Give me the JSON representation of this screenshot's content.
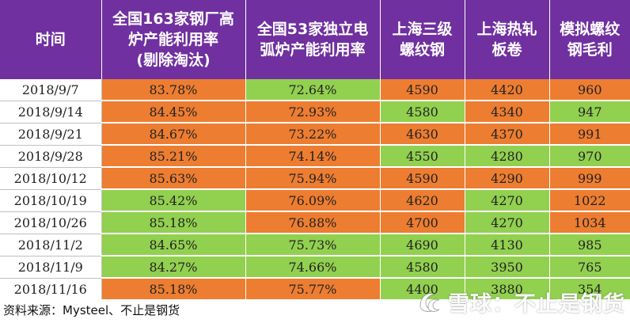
{
  "table": {
    "headers": [
      "时间",
      "全国163家钢厂高\n炉产能利用率\n(剔除淘汰)",
      "全国53家独立电\n弧炉产能利用率",
      "上海三级\n螺纹钢",
      "上海热轧\n板卷",
      "模拟螺纹\n钢毛利"
    ],
    "rows": [
      {
        "date": "2018/9/7",
        "bf": "83.78%",
        "eaf": "72.64%",
        "rebar": "4590",
        "hrc": "4420",
        "margin": "960"
      },
      {
        "date": "2018/9/14",
        "bf": "84.45%",
        "eaf": "72.93%",
        "rebar": "4580",
        "hrc": "4340",
        "margin": "947"
      },
      {
        "date": "2018/9/21",
        "bf": "84.67%",
        "eaf": "73.22%",
        "rebar": "4630",
        "hrc": "4370",
        "margin": "991"
      },
      {
        "date": "2018/9/28",
        "bf": "85.21%",
        "eaf": "74.14%",
        "rebar": "4550",
        "hrc": "4280",
        "margin": "970"
      },
      {
        "date": "2018/10/12",
        "bf": "85.63%",
        "eaf": "75.94%",
        "rebar": "4590",
        "hrc": "4290",
        "margin": "999"
      },
      {
        "date": "2018/10/19",
        "bf": "85.42%",
        "eaf": "76.09%",
        "rebar": "4620",
        "hrc": "4270",
        "margin": "1022"
      },
      {
        "date": "2018/10/26",
        "bf": "85.18%",
        "eaf": "76.88%",
        "rebar": "4700",
        "hrc": "4270",
        "margin": "1034"
      },
      {
        "date": "2018/11/2",
        "bf": "84.65%",
        "eaf": "75.73%",
        "rebar": "4690",
        "hrc": "4130",
        "margin": "985"
      },
      {
        "date": "2018/11/9",
        "bf": "84.27%",
        "eaf": "74.66%",
        "rebar": "4580",
        "hrc": "3950",
        "margin": "765"
      },
      {
        "date": "2018/11/16",
        "bf": "85.18%",
        "eaf": "75.77%",
        "rebar": "4400",
        "hrc": "3880",
        "margin": "354"
      }
    ],
    "cell_colors": [
      [
        "orange",
        "green",
        "orange",
        "orange",
        "orange"
      ],
      [
        "orange",
        "orange",
        "green",
        "orange",
        "green"
      ],
      [
        "orange",
        "orange",
        "orange",
        "orange",
        "orange"
      ],
      [
        "orange",
        "orange",
        "green",
        "green",
        "green"
      ],
      [
        "orange",
        "orange",
        "orange",
        "orange",
        "orange"
      ],
      [
        "green",
        "orange",
        "orange",
        "green",
        "orange"
      ],
      [
        "green",
        "orange",
        "orange",
        "green",
        "orange"
      ],
      [
        "green",
        "green",
        "green",
        "green",
        "green"
      ],
      [
        "green",
        "green",
        "green",
        "green",
        "green"
      ],
      [
        "orange",
        "orange",
        "green",
        "green",
        "green"
      ]
    ]
  },
  "colors": {
    "header_bg": "#7030a0",
    "orange": "#ed7d31",
    "green": "#92d050"
  },
  "footer": {
    "source": "资料来源：Mysteel、不止是钢货"
  },
  "watermark": {
    "text": "雪球：不止是钢货",
    "icon": "snowball-logo-icon"
  }
}
